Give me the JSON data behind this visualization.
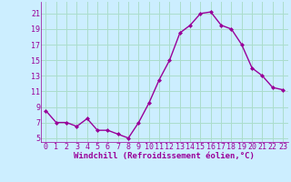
{
  "x": [
    0,
    1,
    2,
    3,
    4,
    5,
    6,
    7,
    8,
    9,
    10,
    11,
    12,
    13,
    14,
    15,
    16,
    17,
    18,
    19,
    20,
    21,
    22,
    23
  ],
  "y": [
    8.5,
    7.0,
    7.0,
    6.5,
    7.5,
    6.0,
    6.0,
    5.5,
    5.0,
    7.0,
    9.5,
    12.5,
    15.0,
    18.5,
    19.5,
    21.0,
    21.2,
    19.5,
    19.0,
    17.0,
    14.0,
    13.0,
    11.5,
    11.2
  ],
  "line_color": "#990099",
  "marker": "D",
  "markersize": 2.0,
  "linewidth": 1.0,
  "bg_color": "#cceeff",
  "grid_color": "#aaddcc",
  "xlabel": "Windchill (Refroidissement éolien,°C)",
  "ylabel_ticks": [
    5,
    7,
    9,
    11,
    13,
    15,
    17,
    19,
    21
  ],
  "xlim": [
    -0.5,
    23.5
  ],
  "ylim": [
    4.5,
    22.5
  ],
  "xlabel_fontsize": 6.5,
  "tick_fontsize": 6.0,
  "tick_color": "#990099",
  "xlabel_color": "#990099"
}
